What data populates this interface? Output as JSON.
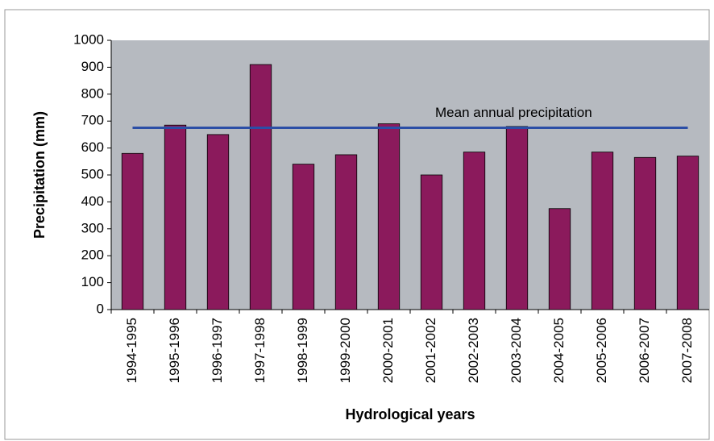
{
  "chart_data": {
    "type": "bar",
    "xlabel": "Hydrological years",
    "ylabel": "Precipitation (mm)",
    "categories": [
      "1994-1995",
      "1995-1996",
      "1996-1997",
      "1997-1998",
      "1998-1999",
      "1999-2000",
      "2000-2001",
      "2001-2002",
      "2002-2003",
      "2003-2004",
      "2004-2005",
      "2005-2006",
      "2006-2007",
      "2007-2008"
    ],
    "values": [
      580,
      685,
      650,
      910,
      540,
      575,
      690,
      500,
      585,
      680,
      375,
      585,
      565,
      570
    ],
    "color": "#8b1a5c",
    "ylim": [
      0,
      1000
    ],
    "yticks": [
      0,
      100,
      200,
      300,
      400,
      500,
      600,
      700,
      800,
      900,
      1000
    ],
    "grid": false,
    "mean_line": {
      "label": "Mean annual precipitation",
      "value": 675,
      "color": "#2b4ea6"
    }
  }
}
